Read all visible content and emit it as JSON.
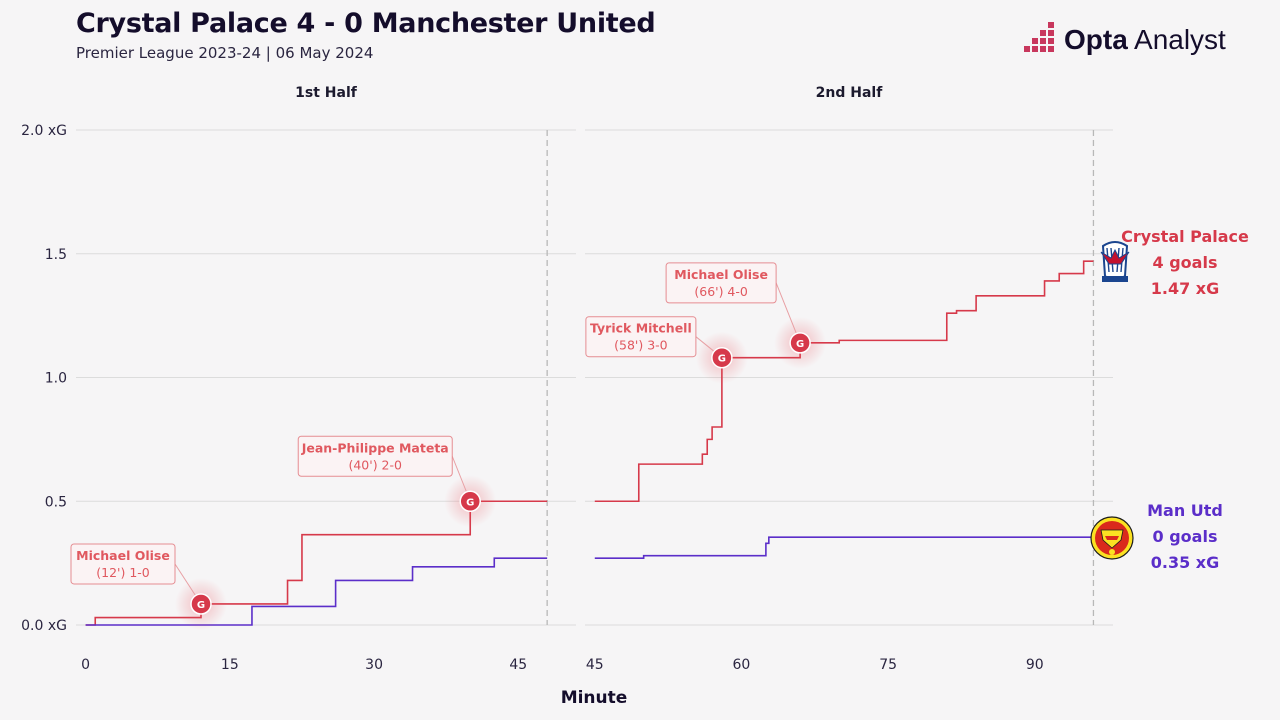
{
  "header": {
    "title": "Crystal Palace 4 - 0 Manchester United",
    "subtitle": "Premier League 2023-24 | 06 May 2024"
  },
  "brand": {
    "bold": "Opta",
    "rest": " Analyst"
  },
  "colors": {
    "palace": "#d6394a",
    "united": "#5b2ec9",
    "grid": "#dcdcdc",
    "annotation": "#e0585f"
  },
  "chart_data": {
    "type": "line",
    "style": "step",
    "xlabel": "Minute",
    "ylabel": "",
    "ylim": [
      0,
      2.0
    ],
    "yticks": [
      {
        "value": 0,
        "label": "0.0 xG"
      },
      {
        "value": 0.5,
        "label": "0.5"
      },
      {
        "value": 1.0,
        "label": "1.0"
      },
      {
        "value": 1.5,
        "label": "1.5"
      },
      {
        "value": 2.0,
        "label": "2.0 xG"
      }
    ],
    "grid": true,
    "panels": [
      {
        "title": "1st Half",
        "xlim": [
          -1,
          51
        ],
        "xticks": [
          0,
          15,
          30,
          45
        ],
        "end_minute": 48
      },
      {
        "title": "2nd Half",
        "xlim": [
          44,
          98
        ],
        "xticks": [
          45,
          60,
          75,
          90
        ],
        "end_minute": 96
      }
    ],
    "series": [
      {
        "name": "Crystal Palace",
        "color": "#d6394a",
        "half1": [
          [
            0,
            0
          ],
          [
            1,
            0.03
          ],
          [
            12,
            0.085
          ],
          [
            21,
            0.18
          ],
          [
            22.5,
            0.365
          ],
          [
            40,
            0.5
          ],
          [
            48,
            0.5
          ]
        ],
        "half2": [
          [
            45,
            0.5
          ],
          [
            49.5,
            0.65
          ],
          [
            56,
            0.69
          ],
          [
            56.5,
            0.75
          ],
          [
            57,
            0.8
          ],
          [
            58,
            1.08
          ],
          [
            66,
            1.14
          ],
          [
            70,
            1.15
          ],
          [
            81,
            1.26
          ],
          [
            82,
            1.27
          ],
          [
            84,
            1.33
          ],
          [
            91,
            1.39
          ],
          [
            92.5,
            1.42
          ],
          [
            95,
            1.47
          ],
          [
            96,
            1.47
          ]
        ],
        "summary": {
          "team": "Crystal Palace",
          "goals": "4 goals",
          "xg": "1.47 xG"
        }
      },
      {
        "name": "Man Utd",
        "color": "#5b2ec9",
        "half1": [
          [
            0,
            0
          ],
          [
            17,
            0
          ],
          [
            17.3,
            0.075
          ],
          [
            26,
            0.18
          ],
          [
            34,
            0.235
          ],
          [
            42.5,
            0.27
          ],
          [
            48,
            0.27
          ]
        ],
        "half2": [
          [
            45,
            0.27
          ],
          [
            50,
            0.28
          ],
          [
            62.5,
            0.33
          ],
          [
            62.8,
            0.355
          ],
          [
            96,
            0.355
          ]
        ],
        "summary": {
          "team": "Man Utd",
          "goals": "0 goals",
          "xg": "0.35 xG"
        }
      }
    ],
    "goals": [
      {
        "panel": 0,
        "minute": 12,
        "xg": 0.085,
        "scorer": "Michael Olise",
        "detail": "(12') 1-0"
      },
      {
        "panel": 0,
        "minute": 40,
        "xg": 0.5,
        "scorer": "Jean-Philippe Mateta",
        "detail": "(40') 2-0"
      },
      {
        "panel": 1,
        "minute": 58,
        "xg": 1.08,
        "scorer": "Tyrick Mitchell",
        "detail": "(58') 3-0"
      },
      {
        "panel": 1,
        "minute": 66,
        "xg": 1.14,
        "scorer": "Michael Olise",
        "detail": "(66') 4-0"
      }
    ],
    "goal_marker": "G"
  }
}
